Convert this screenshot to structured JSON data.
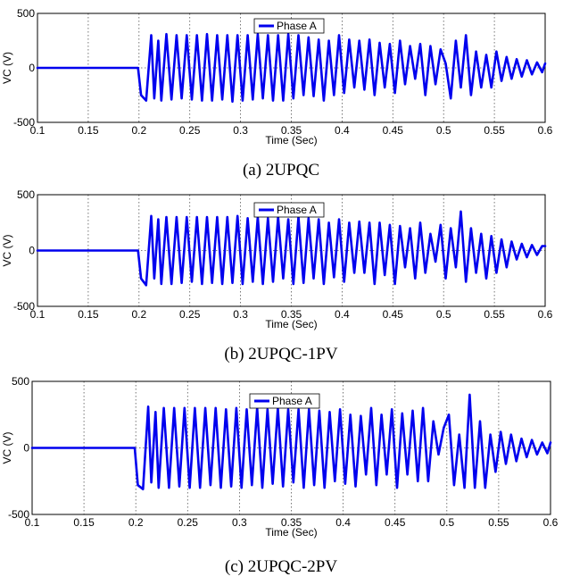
{
  "chart_data": [
    {
      "type": "line",
      "caption": "(a) 2UPQC",
      "xlabel": "Time (Sec)",
      "ylabel": "VC (V)",
      "xlim": [
        0.1,
        0.6
      ],
      "ylim": [
        -500,
        500
      ],
      "xticks": [
        "0.1",
        "0.15",
        "0.2",
        "0.25",
        "0.3",
        "0.35",
        "0.4",
        "0.45",
        "0.5",
        "0.55",
        "0.6"
      ],
      "yticks": [
        "-500",
        "0",
        "500"
      ],
      "grid": true,
      "legend": "top-center",
      "series": [
        {
          "name": "Phase A",
          "color": "#0000ee",
          "x": [
            0.1,
            0.15,
            0.199,
            0.202,
            0.207,
            0.212,
            0.215,
            0.219,
            0.222,
            0.227,
            0.232,
            0.237,
            0.242,
            0.247,
            0.252,
            0.257,
            0.262,
            0.267,
            0.272,
            0.277,
            0.282,
            0.287,
            0.292,
            0.297,
            0.302,
            0.307,
            0.312,
            0.317,
            0.322,
            0.327,
            0.332,
            0.337,
            0.342,
            0.347,
            0.352,
            0.357,
            0.362,
            0.367,
            0.372,
            0.377,
            0.382,
            0.387,
            0.392,
            0.397,
            0.402,
            0.407,
            0.412,
            0.417,
            0.422,
            0.427,
            0.432,
            0.437,
            0.442,
            0.447,
            0.452,
            0.457,
            0.462,
            0.467,
            0.472,
            0.477,
            0.482,
            0.487,
            0.492,
            0.497,
            0.502,
            0.507,
            0.512,
            0.517,
            0.522,
            0.527,
            0.532,
            0.537,
            0.542,
            0.547,
            0.552,
            0.557,
            0.562,
            0.567,
            0.572,
            0.577,
            0.582,
            0.587,
            0.592,
            0.597,
            0.6
          ],
          "y": [
            0,
            0,
            0,
            -250,
            -300,
            300,
            -280,
            250,
            -300,
            310,
            -290,
            300,
            -280,
            300,
            -290,
            300,
            -300,
            310,
            -300,
            300,
            -290,
            300,
            -310,
            300,
            -300,
            300,
            -290,
            310,
            -280,
            300,
            -300,
            300,
            -300,
            310,
            -280,
            300,
            -250,
            280,
            -260,
            260,
            -300,
            250,
            -250,
            300,
            -230,
            260,
            -180,
            250,
            -200,
            260,
            -250,
            230,
            -180,
            220,
            -230,
            250,
            -150,
            200,
            -100,
            220,
            -250,
            200,
            -150,
            170,
            40,
            -280,
            250,
            -180,
            300,
            -250,
            150,
            -180,
            120,
            -180,
            150,
            -120,
            100,
            -100,
            80,
            -80,
            70,
            -60,
            50,
            -40,
            40
          ]
        }
      ]
    },
    {
      "type": "line",
      "caption": "(b) 2UPQC-1PV",
      "xlabel": "Time (Sec)",
      "ylabel": "VC (V)",
      "xlim": [
        0.1,
        0.6
      ],
      "ylim": [
        -500,
        500
      ],
      "xticks": [
        "0.1",
        "0.15",
        "0.2",
        "0.25",
        "0.3",
        "0.35",
        "0.4",
        "0.45",
        "0.5",
        "0.55",
        "0.6"
      ],
      "yticks": [
        "-500",
        "0",
        "500"
      ],
      "grid": true,
      "legend": "top-center",
      "series": [
        {
          "name": "Phase A",
          "color": "#0000ee",
          "x": [
            0.1,
            0.15,
            0.199,
            0.202,
            0.207,
            0.212,
            0.215,
            0.219,
            0.222,
            0.227,
            0.232,
            0.237,
            0.242,
            0.247,
            0.252,
            0.257,
            0.262,
            0.267,
            0.272,
            0.277,
            0.282,
            0.287,
            0.292,
            0.297,
            0.302,
            0.307,
            0.312,
            0.317,
            0.322,
            0.327,
            0.332,
            0.337,
            0.342,
            0.347,
            0.352,
            0.357,
            0.362,
            0.367,
            0.372,
            0.377,
            0.382,
            0.387,
            0.392,
            0.397,
            0.402,
            0.407,
            0.412,
            0.417,
            0.422,
            0.427,
            0.432,
            0.437,
            0.442,
            0.447,
            0.452,
            0.457,
            0.462,
            0.467,
            0.472,
            0.477,
            0.482,
            0.487,
            0.492,
            0.497,
            0.502,
            0.507,
            0.512,
            0.517,
            0.522,
            0.527,
            0.532,
            0.537,
            0.542,
            0.547,
            0.552,
            0.557,
            0.562,
            0.567,
            0.572,
            0.577,
            0.582,
            0.587,
            0.592,
            0.597,
            0.6
          ],
          "y": [
            0,
            0,
            0,
            -250,
            -310,
            310,
            -250,
            280,
            -300,
            300,
            -300,
            300,
            -290,
            300,
            -280,
            300,
            -300,
            300,
            -290,
            300,
            -300,
            300,
            -290,
            310,
            -300,
            290,
            -280,
            300,
            -300,
            290,
            -280,
            300,
            -250,
            280,
            -300,
            300,
            -290,
            290,
            -250,
            280,
            -300,
            250,
            -240,
            280,
            -280,
            250,
            -200,
            260,
            -200,
            250,
            -300,
            250,
            -220,
            230,
            -300,
            220,
            -150,
            200,
            -250,
            250,
            -200,
            150,
            -100,
            230,
            -250,
            200,
            -150,
            350,
            -280,
            200,
            -200,
            150,
            -250,
            130,
            -200,
            100,
            -150,
            80,
            -80,
            60,
            -60,
            50,
            -40,
            40,
            40
          ]
        }
      ]
    },
    {
      "type": "line",
      "caption": "(c) 2UPQC-2PV",
      "xlabel": "Time (Sec)",
      "ylabel": "VC (V)",
      "xlim": [
        0.1,
        0.6
      ],
      "ylim": [
        -500,
        500
      ],
      "xticks": [
        "0.1",
        "0.15",
        "0.2",
        "0.25",
        "0.3",
        "0.35",
        "0.4",
        "0.45",
        "0.5",
        "0.55",
        "0.6"
      ],
      "yticks": [
        "-500",
        "0",
        "500"
      ],
      "grid": true,
      "legend": "top-center",
      "series": [
        {
          "name": "Phase A",
          "color": "#0000ee",
          "x": [
            0.1,
            0.15,
            0.199,
            0.202,
            0.207,
            0.212,
            0.215,
            0.219,
            0.222,
            0.227,
            0.232,
            0.237,
            0.242,
            0.247,
            0.252,
            0.257,
            0.262,
            0.267,
            0.272,
            0.277,
            0.282,
            0.287,
            0.292,
            0.297,
            0.302,
            0.307,
            0.312,
            0.317,
            0.322,
            0.327,
            0.332,
            0.337,
            0.342,
            0.347,
            0.352,
            0.357,
            0.362,
            0.367,
            0.372,
            0.377,
            0.382,
            0.387,
            0.392,
            0.397,
            0.402,
            0.407,
            0.412,
            0.417,
            0.422,
            0.427,
            0.432,
            0.437,
            0.442,
            0.447,
            0.452,
            0.457,
            0.462,
            0.467,
            0.472,
            0.477,
            0.482,
            0.487,
            0.492,
            0.497,
            0.502,
            0.507,
            0.512,
            0.517,
            0.522,
            0.527,
            0.532,
            0.537,
            0.542,
            0.547,
            0.552,
            0.557,
            0.562,
            0.567,
            0.572,
            0.577,
            0.582,
            0.587,
            0.592,
            0.597,
            0.6
          ],
          "y": [
            0,
            0,
            0,
            -280,
            -310,
            310,
            -260,
            270,
            -300,
            300,
            -300,
            300,
            -290,
            300,
            -300,
            300,
            -300,
            300,
            -280,
            300,
            -300,
            290,
            -290,
            300,
            -300,
            290,
            -280,
            300,
            -300,
            290,
            -270,
            300,
            -290,
            290,
            -260,
            290,
            -300,
            290,
            -280,
            280,
            -300,
            270,
            -250,
            290,
            -270,
            250,
            -290,
            240,
            -200,
            300,
            -280,
            250,
            -200,
            290,
            -300,
            260,
            -200,
            280,
            -250,
            300,
            -250,
            200,
            -50,
            150,
            250,
            -280,
            100,
            -300,
            400,
            -300,
            200,
            -300,
            100,
            -180,
            120,
            -120,
            100,
            -100,
            70,
            -70,
            60,
            -50,
            40,
            -40,
            40
          ]
        }
      ]
    }
  ]
}
